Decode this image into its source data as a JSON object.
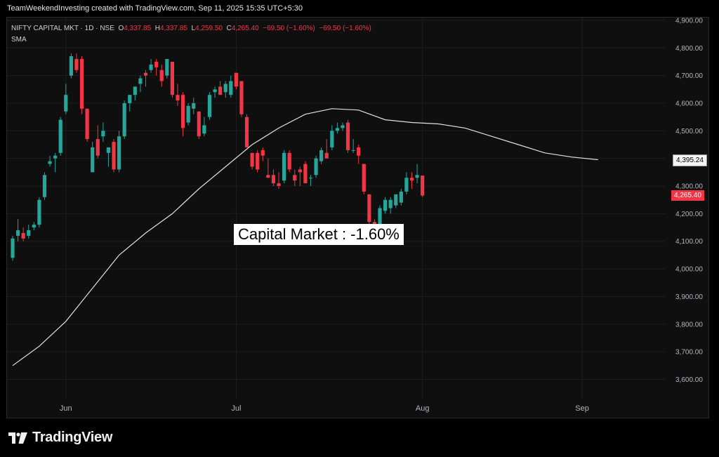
{
  "header": {
    "caption": "TeamWeekendInvesting created with TradingView.com, Sep 11, 2025 15:35 UTC+5:30"
  },
  "legend": {
    "symbol": "NIFTY CAPITAL MKT · 1D · NSE",
    "o_label": "O",
    "o_value": "4,337.85",
    "h_label": "H",
    "h_value": "4,337.85",
    "l_label": "L",
    "l_value": "4,259.50",
    "c_label": "C",
    "c_value": "4,265.40",
    "change": "−69.50 (−1.60%)",
    "change2": "−69.50 (−1.60%)",
    "indicator": "SMA"
  },
  "annotation": "Capital Market : -1.60%",
  "price_tags": {
    "sma_value": "4,395.24",
    "last_price": "4,265.40"
  },
  "footer": {
    "brand": "TradingView",
    "logo_icon": "tradingview-logo-icon"
  },
  "colors": {
    "up": "#26a69a",
    "down": "#f23645",
    "sma": "#e0e0e0",
    "background": "#0f0f0f",
    "grid": "#1e1e1e",
    "axis_text": "#b2b5be"
  },
  "chart_data": {
    "type": "candlestick",
    "title": "NIFTY CAPITAL MKT · 1D · NSE",
    "y_ticks": [
      3600,
      3700,
      3800,
      3900,
      4000,
      4100,
      4200,
      4300,
      4400,
      4500,
      4600,
      4700,
      4800,
      4900
    ],
    "y_tick_labels": [
      "3,600.00",
      "3,700.00",
      "3,800.00",
      "3,900.00",
      "4,000.00",
      "4,100.00",
      "4,200.00",
      "4,300.00",
      "4,400.00",
      "4,500.00",
      "4,600.00",
      "4,700.00",
      "4,800.00",
      "4,900.00"
    ],
    "ylim": [
      3530,
      4910
    ],
    "x_ticks": [
      {
        "label": "Jun",
        "index": 10
      },
      {
        "label": "Jul",
        "index": 42
      },
      {
        "label": "Aug",
        "index": 77
      },
      {
        "label": "Sep",
        "index": 107
      }
    ],
    "grid": true,
    "candles": [
      {
        "o": 4040,
        "h": 4120,
        "l": 4030,
        "c": 4110
      },
      {
        "o": 4120,
        "h": 4180,
        "l": 4100,
        "c": 4140
      },
      {
        "o": 4130,
        "h": 4150,
        "l": 4100,
        "c": 4110
      },
      {
        "o": 4120,
        "h": 4160,
        "l": 4110,
        "c": 4140
      },
      {
        "o": 4150,
        "h": 4170,
        "l": 4140,
        "c": 4160
      },
      {
        "o": 4160,
        "h": 4260,
        "l": 4150,
        "c": 4250
      },
      {
        "o": 4260,
        "h": 4350,
        "l": 4250,
        "c": 4340
      },
      {
        "o": 4380,
        "h": 4410,
        "l": 4370,
        "c": 4390
      },
      {
        "o": 4400,
        "h": 4420,
        "l": 4350,
        "c": 4410
      },
      {
        "o": 4420,
        "h": 4550,
        "l": 4410,
        "c": 4540
      },
      {
        "o": 4570,
        "h": 4670,
        "l": 4560,
        "c": 4630
      },
      {
        "o": 4700,
        "h": 4780,
        "l": 4690,
        "c": 4770
      },
      {
        "o": 4760,
        "h": 4780,
        "l": 4710,
        "c": 4720
      },
      {
        "o": 4760,
        "h": 4770,
        "l": 4560,
        "c": 4580
      },
      {
        "o": 4580,
        "h": 4580,
        "l": 4460,
        "c": 4470
      },
      {
        "o": 4350,
        "h": 4460,
        "l": 4350,
        "c": 4440
      },
      {
        "o": 4470,
        "h": 4520,
        "l": 4400,
        "c": 4410
      },
      {
        "o": 4480,
        "h": 4530,
        "l": 4460,
        "c": 4500
      },
      {
        "o": 4420,
        "h": 4440,
        "l": 4370,
        "c": 4440
      },
      {
        "o": 4460,
        "h": 4470,
        "l": 4350,
        "c": 4360
      },
      {
        "o": 4360,
        "h": 4500,
        "l": 4350,
        "c": 4480
      },
      {
        "o": 4480,
        "h": 4610,
        "l": 4470,
        "c": 4600
      },
      {
        "o": 4600,
        "h": 4630,
        "l": 4570,
        "c": 4630
      },
      {
        "o": 4630,
        "h": 4660,
        "l": 4610,
        "c": 4660
      },
      {
        "o": 4670,
        "h": 4700,
        "l": 4640,
        "c": 4690
      },
      {
        "o": 4710,
        "h": 4720,
        "l": 4660,
        "c": 4700
      },
      {
        "o": 4720,
        "h": 4760,
        "l": 4710,
        "c": 4740
      },
      {
        "o": 4750,
        "h": 4760,
        "l": 4700,
        "c": 4730
      },
      {
        "o": 4720,
        "h": 4740,
        "l": 4660,
        "c": 4680
      },
      {
        "o": 4700,
        "h": 4760,
        "l": 4690,
        "c": 4760
      },
      {
        "o": 4750,
        "h": 4750,
        "l": 4620,
        "c": 4630
      },
      {
        "o": 4630,
        "h": 4670,
        "l": 4590,
        "c": 4610
      },
      {
        "o": 4630,
        "h": 4640,
        "l": 4480,
        "c": 4510
      },
      {
        "o": 4530,
        "h": 4600,
        "l": 4520,
        "c": 4590
      },
      {
        "o": 4580,
        "h": 4620,
        "l": 4560,
        "c": 4600
      },
      {
        "o": 4570,
        "h": 4570,
        "l": 4470,
        "c": 4480
      },
      {
        "o": 4490,
        "h": 4550,
        "l": 4480,
        "c": 4520
      },
      {
        "o": 4550,
        "h": 4640,
        "l": 4540,
        "c": 4630
      },
      {
        "o": 4640,
        "h": 4660,
        "l": 4620,
        "c": 4650
      },
      {
        "o": 4660,
        "h": 4680,
        "l": 4640,
        "c": 4630
      },
      {
        "o": 4640,
        "h": 4680,
        "l": 4620,
        "c": 4670
      },
      {
        "o": 4630,
        "h": 4700,
        "l": 4620,
        "c": 4680
      },
      {
        "o": 4710,
        "h": 4710,
        "l": 4650,
        "c": 4660
      },
      {
        "o": 4680,
        "h": 4680,
        "l": 4550,
        "c": 4560
      },
      {
        "o": 4550,
        "h": 4560,
        "l": 4440,
        "c": 4440
      },
      {
        "o": 4420,
        "h": 4420,
        "l": 4360,
        "c": 4370
      },
      {
        "o": 4420,
        "h": 4430,
        "l": 4350,
        "c": 4360
      },
      {
        "o": 4430,
        "h": 4440,
        "l": 4390,
        "c": 4410
      },
      {
        "o": 4340,
        "h": 4400,
        "l": 4330,
        "c": 4330
      },
      {
        "o": 4340,
        "h": 4360,
        "l": 4300,
        "c": 4310
      },
      {
        "o": 4310,
        "h": 4350,
        "l": 4290,
        "c": 4300
      },
      {
        "o": 4320,
        "h": 4430,
        "l": 4310,
        "c": 4420
      },
      {
        "o": 4420,
        "h": 4430,
        "l": 4350,
        "c": 4360
      },
      {
        "o": 4340,
        "h": 4360,
        "l": 4300,
        "c": 4320
      },
      {
        "o": 4360,
        "h": 4370,
        "l": 4300,
        "c": 4350
      },
      {
        "o": 4380,
        "h": 4390,
        "l": 4310,
        "c": 4310
      },
      {
        "o": 4330,
        "h": 4340,
        "l": 4300,
        "c": 4330
      },
      {
        "o": 4340,
        "h": 4410,
        "l": 4330,
        "c": 4400
      },
      {
        "o": 4390,
        "h": 4440,
        "l": 4380,
        "c": 4430
      },
      {
        "o": 4420,
        "h": 4470,
        "l": 4410,
        "c": 4400
      },
      {
        "o": 4440,
        "h": 4520,
        "l": 4430,
        "c": 4500
      },
      {
        "o": 4500,
        "h": 4530,
        "l": 4490,
        "c": 4510
      },
      {
        "o": 4510,
        "h": 4530,
        "l": 4500,
        "c": 4520
      },
      {
        "o": 4530,
        "h": 4540,
        "l": 4420,
        "c": 4430
      },
      {
        "o": 4430,
        "h": 4470,
        "l": 4420,
        "c": 4430
      },
      {
        "o": 4440,
        "h": 4450,
        "l": 4380,
        "c": 4410
      },
      {
        "o": 4380,
        "h": 4380,
        "l": 4270,
        "c": 4280
      },
      {
        "o": 4270,
        "h": 4270,
        "l": 4160,
        "c": 4170
      },
      {
        "o": 4170,
        "h": 4180,
        "l": 4090,
        "c": 4100
      },
      {
        "o": 4120,
        "h": 4230,
        "l": 4110,
        "c": 4220
      },
      {
        "o": 4210,
        "h": 4260,
        "l": 4200,
        "c": 4250
      },
      {
        "o": 4220,
        "h": 4260,
        "l": 4200,
        "c": 4250
      },
      {
        "o": 4230,
        "h": 4270,
        "l": 4220,
        "c": 4270
      },
      {
        "o": 4240,
        "h": 4290,
        "l": 4230,
        "c": 4280
      },
      {
        "o": 4280,
        "h": 4350,
        "l": 4270,
        "c": 4330
      },
      {
        "o": 4330,
        "h": 4350,
        "l": 4290,
        "c": 4320
      },
      {
        "o": 4330,
        "h": 4380,
        "l": 4310,
        "c": 4340
      },
      {
        "o": 4337.85,
        "h": 4337.85,
        "l": 4259.5,
        "c": 4265.4
      }
    ],
    "sma": {
      "name": "SMA",
      "points": [
        {
          "index": 0,
          "value": 3650
        },
        {
          "index": 5,
          "value": 3720
        },
        {
          "index": 10,
          "value": 3810
        },
        {
          "index": 15,
          "value": 3930
        },
        {
          "index": 20,
          "value": 4050
        },
        {
          "index": 25,
          "value": 4130
        },
        {
          "index": 30,
          "value": 4200
        },
        {
          "index": 35,
          "value": 4290
        },
        {
          "index": 40,
          "value": 4370
        },
        {
          "index": 45,
          "value": 4450
        },
        {
          "index": 50,
          "value": 4510
        },
        {
          "index": 55,
          "value": 4560
        },
        {
          "index": 60,
          "value": 4580
        },
        {
          "index": 65,
          "value": 4575
        },
        {
          "index": 70,
          "value": 4540
        },
        {
          "index": 75,
          "value": 4530
        },
        {
          "index": 80,
          "value": 4525
        },
        {
          "index": 85,
          "value": 4510
        },
        {
          "index": 90,
          "value": 4480
        },
        {
          "index": 95,
          "value": 4450
        },
        {
          "index": 100,
          "value": 4420
        },
        {
          "index": 105,
          "value": 4405
        },
        {
          "index": 110,
          "value": 4395.24
        }
      ]
    }
  }
}
